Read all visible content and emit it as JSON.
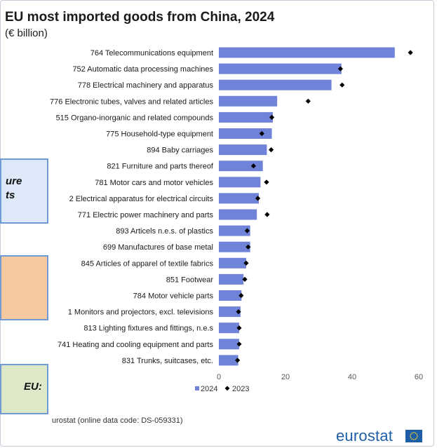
{
  "title": "EU most imported goods from China, 2024",
  "subtitle": "(€ billion)",
  "chart_data": {
    "type": "bar",
    "orientation": "horizontal",
    "categories": [
      "764 Telecommunications equipment",
      "752 Automatic data processing machines",
      "778 Electrical machinery and apparatus",
      "776 Electronic tubes, valves and related articles",
      "515 Organo-inorganic and related compounds",
      "775 Household-type equipment",
      "894 Baby carriages",
      "821 Furniture and parts thereof",
      "781 Motor cars and motor vehicles",
      "2 Electrical apparatus for electrical circuits",
      "771 Electric power machinery and parts",
      "893 Articels n.e.s. of plastics",
      "699 Manufactures of base metal",
      "845 Articles of apparel of textile fabrics",
      "851 Footwear",
      "784 Motor vehicle parts",
      "1 Monitors and projectors, excl. televisions",
      "813 Lighting fixtures and fittings, n.e.s",
      "741 Heating and cooling equipment and parts",
      "831 Trunks, suitcases, etc."
    ],
    "series": [
      {
        "name": "2024",
        "mark": "bar",
        "values": [
          52.8,
          36.8,
          33.8,
          17.5,
          16.2,
          15.9,
          14.4,
          13.2,
          12.5,
          12.0,
          11.4,
          9.4,
          9.4,
          8.2,
          7.4,
          6.8,
          6.5,
          6.1,
          6.1,
          5.8
        ]
      },
      {
        "name": "2023",
        "mark": "diamond",
        "values": [
          57.5,
          36.5,
          37.0,
          26.8,
          15.9,
          12.9,
          15.7,
          10.4,
          14.3,
          11.7,
          14.5,
          8.5,
          8.8,
          8.2,
          7.8,
          6.7,
          5.9,
          6.1,
          6.1,
          5.6
        ]
      }
    ],
    "xlim": [
      0,
      60
    ],
    "xticks": [
      0,
      20,
      40,
      60
    ],
    "grid": false,
    "legend": "bottom",
    "colors": {
      "bar": "#6f83d9",
      "marker": "#000000",
      "text": "#1a1a1a"
    }
  },
  "side_boxes": [
    {
      "text": "ure\nts",
      "fill": "#dde8f8",
      "border": "#6f9ad6"
    },
    {
      "text": "",
      "fill": "#f6c9a0",
      "border": "#6f9ad6"
    },
    {
      "text": "EU:",
      "fill": "#dce8c8",
      "border": "#6f9ad6"
    }
  ],
  "source": "urostat (online data code: DS-059331)",
  "brand": "eurostat"
}
